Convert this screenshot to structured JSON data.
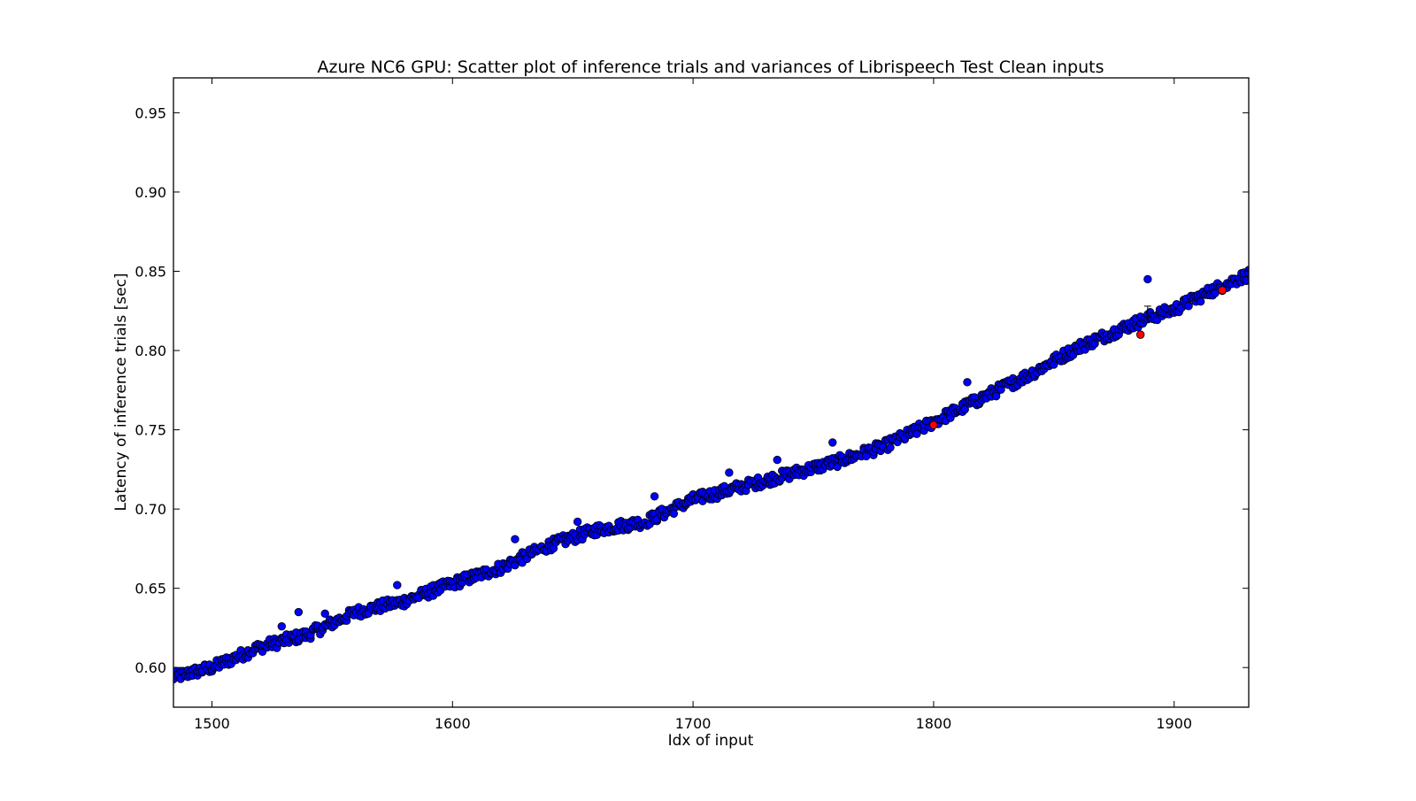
{
  "chart_data": {
    "type": "scatter",
    "title": "Azure NC6 GPU: Scatter plot of inference trials and variances of Librispeech Test Clean inputs",
    "xlabel": "Idx of input",
    "ylabel": "Latency of inference trials [sec]",
    "xlim": [
      1484,
      1931
    ],
    "ylim": [
      0.575,
      0.972
    ],
    "xticks": [
      1500,
      1600,
      1700,
      1800,
      1900
    ],
    "xtick_labels": [
      "1500",
      "1600",
      "1700",
      "1800",
      "1900"
    ],
    "yticks": [
      0.6,
      0.65,
      0.7,
      0.75,
      0.8,
      0.85,
      0.9,
      0.95
    ],
    "ytick_labels": [
      "0.60",
      "0.65",
      "0.70",
      "0.75",
      "0.80",
      "0.85",
      "0.90",
      "0.95"
    ],
    "grid": false,
    "legend": "none",
    "series": [
      {
        "color": "#0000ff",
        "marker": "circle",
        "trend_x": [
          1484,
          1500,
          1520,
          1540,
          1560,
          1580,
          1600,
          1620,
          1640,
          1660,
          1680,
          1700,
          1720,
          1740,
          1760,
          1780,
          1800,
          1820,
          1840,
          1860,
          1880,
          1890,
          1900,
          1920,
          1931
        ],
        "trend_y": [
          0.594,
          0.6,
          0.613,
          0.621,
          0.635,
          0.642,
          0.653,
          0.663,
          0.677,
          0.687,
          0.692,
          0.706,
          0.714,
          0.722,
          0.73,
          0.74,
          0.755,
          0.77,
          0.785,
          0.802,
          0.815,
          0.821,
          0.826,
          0.841,
          0.848
        ],
        "outliers": [
          {
            "x": 1536,
            "y": 0.635
          },
          {
            "x": 1529,
            "y": 0.626
          },
          {
            "x": 1547,
            "y": 0.634
          },
          {
            "x": 1577,
            "y": 0.652
          },
          {
            "x": 1626,
            "y": 0.681
          },
          {
            "x": 1652,
            "y": 0.692
          },
          {
            "x": 1684,
            "y": 0.708
          },
          {
            "x": 1715,
            "y": 0.723
          },
          {
            "x": 1735,
            "y": 0.731
          },
          {
            "x": 1758,
            "y": 0.742
          },
          {
            "x": 1814,
            "y": 0.78
          },
          {
            "x": 1889,
            "y": 0.845
          }
        ]
      },
      {
        "color": "#ff0000",
        "marker": "circle",
        "points": [
          {
            "x": 1886,
            "y": 0.81
          },
          {
            "x": 1920,
            "y": 0.838
          },
          {
            "x": 1800,
            "y": 0.753
          }
        ]
      }
    ]
  }
}
